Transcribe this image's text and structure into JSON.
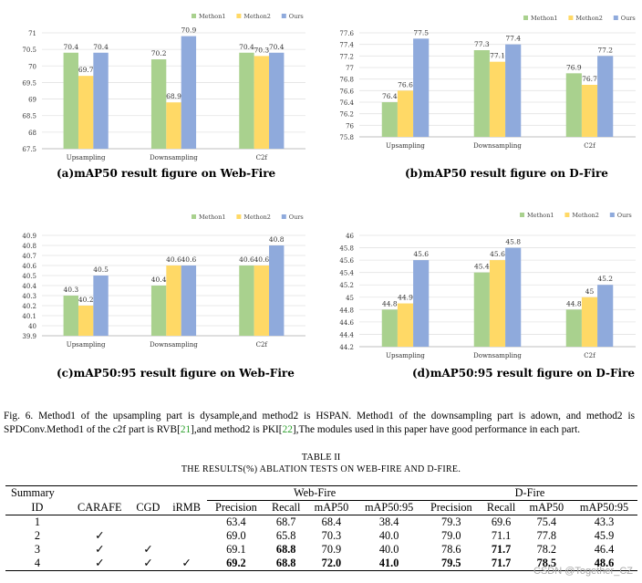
{
  "colors": {
    "method1": "#a9d18e",
    "method2": "#ffd966",
    "ours": "#8faadc"
  },
  "chart_data": [
    {
      "type": "bar",
      "title": "(a)mAP50 result figure on Web-Fire",
      "categories": [
        "Upsampling",
        "Downsampling",
        "C2f"
      ],
      "series": [
        {
          "name": "Methon1",
          "values": [
            70.4,
            70.2,
            70.4
          ],
          "labels": [
            "70.4",
            "70.2",
            "70.4"
          ]
        },
        {
          "name": "Methon2",
          "values": [
            69.7,
            68.9,
            70.3
          ],
          "labels": [
            "69.7",
            "68.9",
            "70.3"
          ]
        },
        {
          "name": "Ours",
          "values": [
            70.4,
            70.9,
            70.4
          ],
          "labels": [
            "70.4",
            "70.9",
            "70.4"
          ]
        }
      ],
      "ylim": [
        67.5,
        71
      ],
      "yticks": [
        "67.5",
        "68",
        "68.5",
        "69",
        "69.5",
        "70",
        "70.5",
        "71"
      ]
    },
    {
      "type": "bar",
      "title": "(b)mAP50 result figure on D-Fire",
      "categories": [
        "Upsampling",
        "Downsampling",
        "C2f"
      ],
      "series": [
        {
          "name": "Methon1",
          "values": [
            76.4,
            77.3,
            76.9
          ],
          "labels": [
            "76.4",
            "77.3",
            "76.9"
          ]
        },
        {
          "name": "Methon2",
          "values": [
            76.6,
            77.1,
            76.7
          ],
          "labels": [
            "76.6",
            "77.1",
            "76.7"
          ]
        },
        {
          "name": "Ours",
          "values": [
            77.5,
            77.4,
            77.2
          ],
          "labels": [
            "77.5",
            "77.4",
            "77.2"
          ]
        }
      ],
      "ylim": [
        75.8,
        77.6
      ],
      "yticks": [
        "75.8",
        "76",
        "76.2",
        "76.4",
        "76.6",
        "76.8",
        "77",
        "77.2",
        "77.4",
        "77.6"
      ]
    },
    {
      "type": "bar",
      "title": "(c)mAP50:95 result figure on Web-Fire",
      "categories": [
        "Upsampling",
        "Downsampling",
        "C2f"
      ],
      "series": [
        {
          "name": "Methon1",
          "values": [
            40.3,
            40.4,
            40.6
          ],
          "labels": [
            "40.3",
            "40.4",
            "40.6"
          ]
        },
        {
          "name": "Methon2",
          "values": [
            40.2,
            40.6,
            40.6
          ],
          "labels": [
            "40.2",
            "40.6",
            "40.6"
          ]
        },
        {
          "name": "Ours",
          "values": [
            40.5,
            40.6,
            40.8
          ],
          "labels": [
            "40.5",
            "40.6",
            "40.8"
          ]
        }
      ],
      "ylim": [
        39.9,
        40.9
      ],
      "yticks": [
        "39.9",
        "40",
        "40.1",
        "40.2",
        "40.3",
        "40.4",
        "40.5",
        "40.6",
        "40.7",
        "40.8",
        "40.9"
      ]
    },
    {
      "type": "bar",
      "title": "(d)mAP50:95 result figure on D-Fire",
      "categories": [
        "Upsampling",
        "Downsampling",
        "C2f"
      ],
      "series": [
        {
          "name": "Methon1",
          "values": [
            44.8,
            45.4,
            44.8
          ],
          "labels": [
            "44.8",
            "45.4",
            "44.8"
          ]
        },
        {
          "name": "Methon2",
          "values": [
            44.9,
            45.6,
            45
          ],
          "labels": [
            "44.9",
            "45.6",
            "45"
          ]
        },
        {
          "name": "Ours",
          "values": [
            45.6,
            45.8,
            45.2
          ],
          "labels": [
            "45.6",
            "45.8",
            "45.2"
          ]
        }
      ],
      "ylim": [
        44.2,
        46
      ],
      "yticks": [
        "44.2",
        "44.4",
        "44.6",
        "44.8",
        "45",
        "45.2",
        "45.4",
        "45.6",
        "45.8",
        "46"
      ]
    }
  ],
  "figure_caption": {
    "part1": "Fig. 6.  Method1 of the upsampling part is dysample,and method2 is HSPAN. Method1 of the downsampling part is adown, and method2 is SPDConv.Method1 of the c2f part is RVB[",
    "ref1": "21",
    "part2": "],and method2 is PKI[",
    "ref2": "22",
    "part3": "],The modules used in this paper have good performance in each part."
  },
  "table": {
    "title": "TABLE II",
    "subtitle": "THE RESULTS(%) ABLATION TESTS ON WEB-FIRE AND D-FIRE.",
    "summary_label": "Summary",
    "group_webfire": "Web-Fire",
    "group_dfire": "D-Fire",
    "headers": [
      "ID",
      "CARAFE",
      "CGD",
      "iRMB",
      "Precision",
      "Recall",
      "mAP50",
      "mAP50:95",
      "Precision",
      "Recall",
      "mAP50",
      "mAP50:95"
    ],
    "rows": [
      [
        "1",
        "",
        "",
        "",
        "63.4",
        "68.7",
        "68.4",
        "38.4",
        "79.3",
        "69.6",
        "75.4",
        "43.3"
      ],
      [
        "2",
        "✓",
        "",
        "",
        "69.0",
        "65.8",
        "70.3",
        "40.0",
        "79.0",
        "71.1",
        "77.8",
        "45.9"
      ],
      [
        "3",
        "✓",
        "✓",
        "",
        "69.1",
        "68.8",
        "70.9",
        "40.0",
        "78.6",
        "71.7",
        "78.2",
        "46.4"
      ],
      [
        "4",
        "✓",
        "✓",
        "✓",
        "69.2",
        "68.8",
        "72.0",
        "41.0",
        "79.5",
        "71.7",
        "78.5",
        "48.6"
      ]
    ]
  },
  "watermark": "CSDN @Together_CZ"
}
